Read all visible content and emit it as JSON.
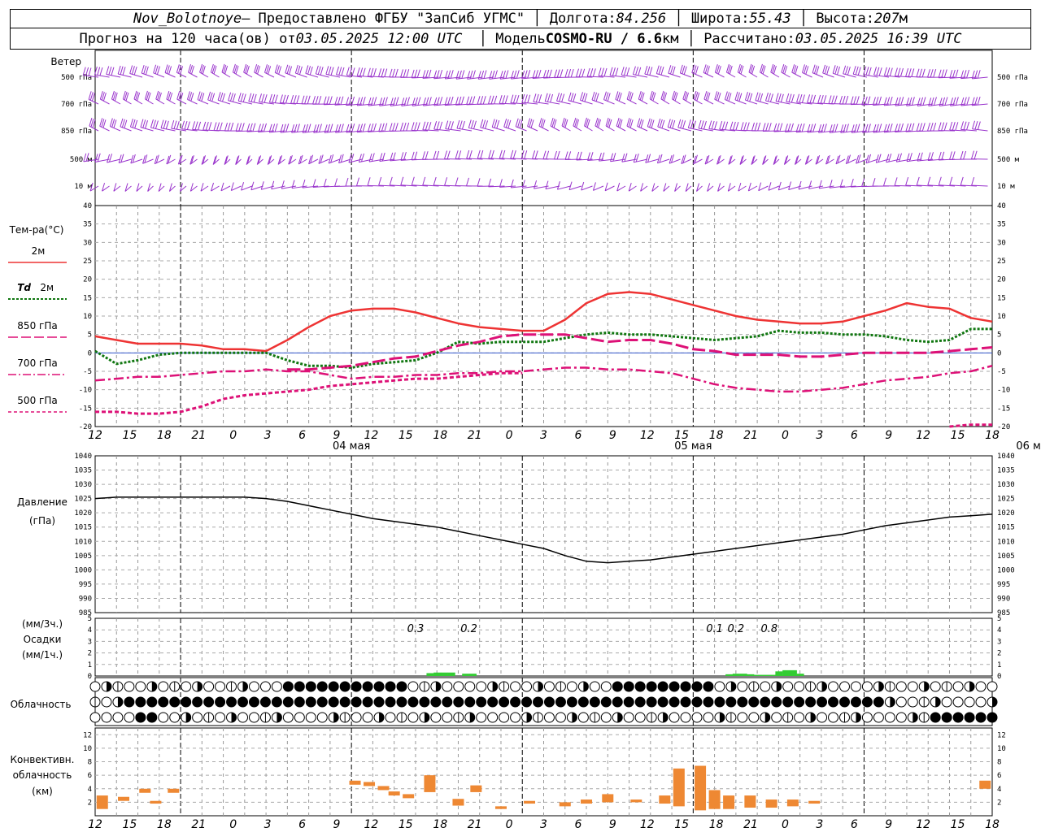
{
  "header": {
    "station": "Nov_Bolotnoye",
    "provider": "– Предоставлено ФГБУ \"ЗапСиб УГМС\"",
    "lon_label": "Долгота:",
    "lon": "84.256",
    "lat_label": "Широта:",
    "lat": "55.43",
    "alt_label": "Высота:",
    "alt": "207",
    "alt_unit": "м",
    "forecast_prefix": "Прогноз на 120 часа(ов) от",
    "forecast_time": "03.05.2025 12:00 UTC",
    "model_label": "Модель",
    "model": "COSMO-RU / 6.6",
    "model_unit": "км",
    "calc_label": "Рассчитано:",
    "calc_time": "03.05.2025 16:39 UTC"
  },
  "wind_panel": {
    "title": "Ветер",
    "levels": [
      "500 гПа",
      "700 гПа",
      "850 гПа",
      "500 м",
      "10  м"
    ],
    "barb_color": "#9933cc"
  },
  "temp_panel": {
    "title": "Тем-ра(°С)",
    "legend": [
      {
        "label": "2м",
        "color": "#ee3333",
        "style": "solid"
      },
      {
        "label_td": "Td",
        "label": "2м",
        "color": "#117711",
        "style": "dotted"
      },
      {
        "label": "850 гПа",
        "color": "#dd1177",
        "style": "dash"
      },
      {
        "label": "700 гПа",
        "color": "#dd1177",
        "style": "dashdot"
      },
      {
        "label": "500 гПа",
        "color": "#dd1177",
        "style": "dashed-fine"
      }
    ],
    "yticks": [
      "40",
      "35",
      "30",
      "25",
      "20",
      "15",
      "10",
      "5",
      "0",
      "-5",
      "-10",
      "-15",
      "-20"
    ]
  },
  "x_axis": {
    "ticks": [
      "12",
      "15",
      "18",
      "21",
      "0",
      "3",
      "6",
      "9",
      "12",
      "15",
      "18",
      "21",
      "0",
      "3",
      "6",
      "9",
      "12",
      "15",
      "18",
      "21",
      "0",
      "3",
      "6",
      "9",
      "12",
      "15",
      "18"
    ],
    "days": [
      "04 мая",
      "05 мая",
      "06 мая"
    ]
  },
  "pressure_panel": {
    "title": "Давление",
    "unit": "(гПа)",
    "yticks": [
      "1040",
      "1035",
      "1030",
      "1025",
      "1020",
      "1015",
      "1010",
      "1005",
      "1000",
      "995",
      "990",
      "985"
    ]
  },
  "precip_panel": {
    "unit1": "(мм/3ч.)",
    "title": "Осадки",
    "unit2": "(мм/1ч.)",
    "yticks": [
      "5",
      "4",
      "3",
      "2",
      "1",
      "0"
    ],
    "labels": [
      "0.3",
      "0.2",
      "0.1",
      "0.2",
      "0.8"
    ],
    "color": "#33cc33"
  },
  "cloud_panel": {
    "title": "Облачность"
  },
  "conv_panel": {
    "title1": "Конвективн.",
    "title2": "облачность",
    "unit": "(км)",
    "yticks": [
      "12",
      "10",
      "8",
      "6",
      "4",
      "2"
    ],
    "color": "#ee8833"
  },
  "chart_data": [
    {
      "type": "line",
      "name_ref": "temp_panel",
      "x_hours": [
        0,
        3,
        6,
        9,
        12,
        15,
        18,
        21,
        24,
        27,
        30,
        33,
        36,
        39,
        42,
        45,
        48,
        51,
        54,
        57,
        60,
        63,
        66,
        69,
        72,
        75,
        78,
        81,
        84,
        87,
        90,
        93,
        96,
        99,
        102,
        105,
        108,
        111,
        114,
        117,
        120,
        123,
        126
      ],
      "series": [
        {
          "name": "2м",
          "values": [
            4.5,
            3.5,
            2.5,
            2.5,
            2.5,
            2.0,
            1.0,
            1.0,
            0.5,
            3.5,
            7.0,
            10.0,
            11.5,
            12.0,
            12.0,
            11.0,
            9.5,
            8.0,
            7.0,
            6.5,
            6.0,
            6.0,
            9.0,
            13.5,
            16.0,
            16.5,
            16.0,
            14.5,
            13.0,
            11.5,
            10.0,
            9.0,
            8.5,
            8.0,
            8.0,
            8.5,
            10.0,
            11.5,
            13.5,
            12.5,
            12.0,
            9.5,
            8.5
          ]
        },
        {
          "name": "Td 2м",
          "values": [
            0.5,
            -3.0,
            -2.0,
            -0.5,
            0.0,
            0.0,
            0.0,
            0.0,
            0.0,
            -2.0,
            -3.5,
            -3.5,
            -4.0,
            -3.0,
            -2.5,
            -2.0,
            0.0,
            3.0,
            2.5,
            3.0,
            3.0,
            3.0,
            4.0,
            5.0,
            5.5,
            5.0,
            5.0,
            4.5,
            4.0,
            3.5,
            4.0,
            4.5,
            6.0,
            5.5,
            5.5,
            5.0,
            5.0,
            4.5,
            3.5,
            3.0,
            3.5,
            6.5,
            6.5
          ]
        },
        {
          "name": "850 гПа",
          "values": [
            null,
            null,
            null,
            null,
            null,
            null,
            null,
            null,
            null,
            -4.5,
            -4.5,
            -4.0,
            -3.5,
            -2.5,
            -1.5,
            -1.0,
            0.5,
            2.0,
            3.0,
            4.5,
            5.0,
            5.0,
            5.0,
            4.0,
            3.0,
            3.5,
            3.5,
            2.5,
            1.0,
            0.5,
            -0.5,
            -0.5,
            -0.5,
            -1.0,
            -1.0,
            -0.5,
            0.0,
            0.0,
            0.0,
            0.0,
            0.5,
            1.0,
            1.5
          ]
        },
        {
          "name": "700 гПа",
          "values": [
            -7.5,
            -7.0,
            -6.5,
            -6.5,
            -6.0,
            -5.5,
            -5.0,
            -5.0,
            -4.5,
            -5.0,
            -5.0,
            -6.0,
            -7.0,
            -6.5,
            -6.5,
            -6.0,
            -6.0,
            -5.5,
            -5.5,
            -5.0,
            -5.0,
            -4.5,
            -4.0,
            -4.0,
            -4.5,
            -4.5,
            -5.0,
            -5.5,
            -7.0,
            -8.5,
            -9.5,
            -10.0,
            -10.5,
            -10.5,
            -10.0,
            -9.5,
            -8.5,
            -7.5,
            -7.0,
            -6.5,
            -5.5,
            -5.0,
            -3.5
          ]
        },
        {
          "name": "500 гПа",
          "values": [
            -16,
            -16,
            -16.5,
            -16.5,
            -16,
            -14.5,
            -12.5,
            -11.5,
            -11,
            -10.5,
            -10,
            -9,
            -8.5,
            -8,
            -7.5,
            -7,
            -7,
            -6.5,
            -6,
            -5.5,
            -5.5,
            null,
            null,
            null,
            null,
            null,
            null,
            null,
            null,
            null,
            null,
            null,
            null,
            null,
            null,
            null,
            null,
            null,
            null,
            null,
            -20,
            -19.5,
            -19.5
          ]
        }
      ],
      "ylim": [
        -20,
        40
      ]
    },
    {
      "type": "line",
      "name_ref": "pressure_panel",
      "x_hours": [
        0,
        3,
        6,
        9,
        12,
        15,
        18,
        21,
        24,
        27,
        30,
        33,
        36,
        39,
        42,
        45,
        48,
        51,
        54,
        57,
        60,
        63,
        66,
        69,
        72,
        75,
        78,
        81,
        84,
        87,
        90,
        93,
        96,
        99,
        102,
        105,
        108,
        111,
        114,
        117,
        120,
        123,
        126
      ],
      "series": [
        {
          "name": "Давление",
          "values": [
            1025,
            1025.5,
            1025.5,
            1025.5,
            1025.5,
            1025.5,
            1025.5,
            1025.5,
            1025,
            1024,
            1022.5,
            1021,
            1019.5,
            1018,
            1017,
            1016,
            1015,
            1013.5,
            1012,
            1010.5,
            1009,
            1007.5,
            1005,
            1003,
            1002.5,
            1003,
            1003.5,
            1004.5,
            1005.5,
            1006.5,
            1007.5,
            1008.5,
            1009.5,
            1010.5,
            1011.5,
            1012.5,
            1014,
            1015.5,
            1016.5,
            1017.5,
            1018.5,
            1019,
            1019.5
          ]
        }
      ],
      "ylim": [
        985,
        1040
      ]
    },
    {
      "type": "bar",
      "name_ref": "precip_panel",
      "x_hours": [
        47,
        48,
        49,
        50,
        52,
        53,
        89,
        90,
        91,
        92,
        93,
        94,
        95,
        96,
        97,
        98,
        99
      ],
      "values": [
        0.25,
        0.3,
        0.3,
        0.3,
        0.2,
        0.2,
        0.15,
        0.2,
        0.2,
        0.15,
        0.1,
        0.1,
        0.1,
        0.4,
        0.5,
        0.5,
        0.2
      ],
      "ylim": [
        0,
        5
      ]
    },
    {
      "type": "bar",
      "name_ref": "conv_panel",
      "bars": [
        {
          "x": 1,
          "base": 1,
          "top": 3
        },
        {
          "x": 4,
          "base": 2.2,
          "top": 2.8
        },
        {
          "x": 7,
          "base": 3.4,
          "top": 4.0
        },
        {
          "x": 8.5,
          "base": 1.8,
          "top": 2.2
        },
        {
          "x": 11,
          "base": 3.4,
          "top": 4.0
        },
        {
          "x": 36.5,
          "base": 4.6,
          "top": 5.2
        },
        {
          "x": 38.5,
          "base": 4.4,
          "top": 5.0
        },
        {
          "x": 40.5,
          "base": 3.8,
          "top": 4.4
        },
        {
          "x": 42,
          "base": 3.0,
          "top": 3.6
        },
        {
          "x": 44,
          "base": 2.6,
          "top": 3.2
        },
        {
          "x": 47,
          "base": 3.5,
          "top": 6.0
        },
        {
          "x": 51,
          "base": 1.5,
          "top": 2.5
        },
        {
          "x": 53.5,
          "base": 3.5,
          "top": 4.5
        },
        {
          "x": 57,
          "base": 1.0,
          "top": 1.4
        },
        {
          "x": 61,
          "base": 1.8,
          "top": 2.2
        },
        {
          "x": 66,
          "base": 1.4,
          "top": 2.0
        },
        {
          "x": 69,
          "base": 1.8,
          "top": 2.4
        },
        {
          "x": 72,
          "base": 2.0,
          "top": 3.2
        },
        {
          "x": 76,
          "base": 2.0,
          "top": 2.4
        },
        {
          "x": 80,
          "base": 1.8,
          "top": 3.0
        },
        {
          "x": 82,
          "base": 1.4,
          "top": 7.0
        },
        {
          "x": 85,
          "base": 0.8,
          "top": 7.4
        },
        {
          "x": 87,
          "base": 1.0,
          "top": 3.8
        },
        {
          "x": 89,
          "base": 1.0,
          "top": 3.0
        },
        {
          "x": 92,
          "base": 1.2,
          "top": 3.0
        },
        {
          "x": 95,
          "base": 1.2,
          "top": 2.4
        },
        {
          "x": 98,
          "base": 1.4,
          "top": 2.4
        },
        {
          "x": 101,
          "base": 1.8,
          "top": 2.2
        },
        {
          "x": 125,
          "base": 4.0,
          "top": 5.2
        }
      ],
      "ylim": [
        0,
        13
      ]
    }
  ]
}
